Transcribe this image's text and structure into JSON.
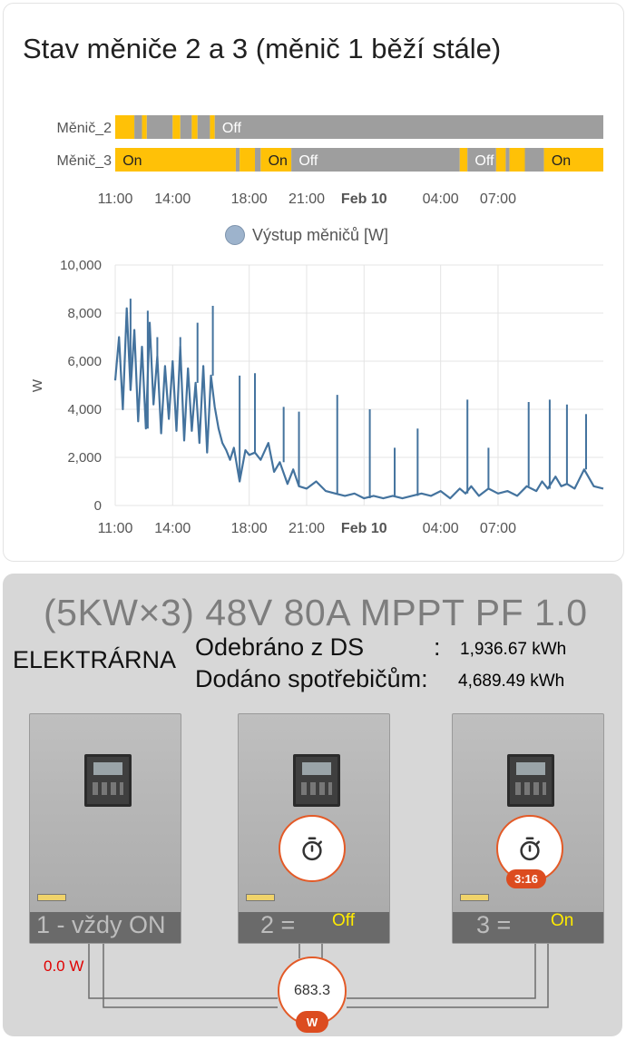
{
  "card_title": "Stav měniče 2 a 3 (měnič 1 běží stále)",
  "timeline": {
    "rows": [
      {
        "name": "Měnič_2",
        "segments": [
          {
            "state": "On",
            "start": 0.0,
            "end": 1.0
          },
          {
            "state": "Off",
            "start": 1.0,
            "end": 1.4
          },
          {
            "state": "On",
            "start": 1.4,
            "end": 1.65
          },
          {
            "state": "Off",
            "start": 1.65,
            "end": 3.0
          },
          {
            "state": "On",
            "start": 3.0,
            "end": 3.4
          },
          {
            "state": "Off",
            "start": 3.4,
            "end": 4.0
          },
          {
            "state": "On",
            "start": 4.0,
            "end": 4.3
          },
          {
            "state": "Off",
            "start": 4.3,
            "end": 4.95
          },
          {
            "state": "On",
            "start": 4.95,
            "end": 5.2
          },
          {
            "state": "Off",
            "start": 5.2,
            "end": 25.5
          }
        ],
        "labels": [
          {
            "text": "Off",
            "at": 5.4
          }
        ]
      },
      {
        "name": "Měnič_3",
        "segments": [
          {
            "state": "On",
            "start": 0.0,
            "end": 6.3
          },
          {
            "state": "Off",
            "start": 6.3,
            "end": 6.5
          },
          {
            "state": "On",
            "start": 6.5,
            "end": 7.3
          },
          {
            "state": "Off",
            "start": 7.3,
            "end": 7.6
          },
          {
            "state": "On",
            "start": 7.6,
            "end": 9.2
          },
          {
            "state": "Off",
            "start": 9.2,
            "end": 18.0
          },
          {
            "state": "On",
            "start": 18.0,
            "end": 18.4
          },
          {
            "state": "Off",
            "start": 18.4,
            "end": 19.9
          },
          {
            "state": "On",
            "start": 19.9,
            "end": 20.4
          },
          {
            "state": "Off",
            "start": 20.4,
            "end": 20.6
          },
          {
            "state": "On",
            "start": 20.6,
            "end": 21.4
          },
          {
            "state": "Off",
            "start": 21.4,
            "end": 22.4
          },
          {
            "state": "On",
            "start": 22.4,
            "end": 25.5
          }
        ],
        "labels": [
          {
            "text": "On",
            "at": 0.2
          },
          {
            "text": "On",
            "at": 7.8
          },
          {
            "text": "Off",
            "at": 9.4
          },
          {
            "text": "Off",
            "at": 18.6
          },
          {
            "text": "On",
            "at": 22.6
          }
        ]
      }
    ],
    "colors": {
      "On": "#ffc107",
      "Off": "#9e9e9e"
    },
    "x_ticks": [
      {
        "label": "11:00",
        "h": 0,
        "bold": false
      },
      {
        "label": "14:00",
        "h": 3,
        "bold": false
      },
      {
        "label": "18:00",
        "h": 7,
        "bold": false
      },
      {
        "label": "21:00",
        "h": 10,
        "bold": false
      },
      {
        "label": "Feb 10",
        "h": 13,
        "bold": true
      },
      {
        "label": "04:00",
        "h": 17,
        "bold": false
      },
      {
        "label": "07:00",
        "h": 20,
        "bold": false
      }
    ]
  },
  "chart_data": {
    "type": "line",
    "legend": "Výstup měničů [W]",
    "ylabel": "W",
    "ylim": [
      0,
      10000
    ],
    "yticks": [
      "0",
      "2,000",
      "4,000",
      "6,000",
      "8,000",
      "10,000"
    ],
    "color": "#44739e",
    "x_hours_after_1100": [
      0,
      0.2,
      0.4,
      0.6,
      0.8,
      1.0,
      1.2,
      1.4,
      1.6,
      1.8,
      2.0,
      2.2,
      2.4,
      2.6,
      2.8,
      3.0,
      3.2,
      3.4,
      3.6,
      3.8,
      4.0,
      4.2,
      4.4,
      4.6,
      4.8,
      5.0,
      5.2,
      5.4,
      5.6,
      5.8,
      6.0,
      6.2,
      6.5,
      6.8,
      7.0,
      7.3,
      7.6,
      8.0,
      8.3,
      8.6,
      9.0,
      9.3,
      9.6,
      10.0,
      10.5,
      11.0,
      11.5,
      12.0,
      12.5,
      13.0,
      13.5,
      14.0,
      14.5,
      15.0,
      15.5,
      16.0,
      16.5,
      17.0,
      17.5,
      18.0,
      18.3,
      18.6,
      19.0,
      19.5,
      20.0,
      20.5,
      21.0,
      21.5,
      22.0,
      22.3,
      22.6,
      23.0,
      23.3,
      23.6,
      24.0,
      24.5,
      25.0,
      25.5
    ],
    "values": [
      5200,
      7000,
      4000,
      8200,
      4800,
      7300,
      3500,
      6600,
      3200,
      7600,
      4200,
      6200,
      3000,
      5800,
      3600,
      6000,
      3100,
      6600,
      2700,
      5700,
      3100,
      5100,
      2600,
      5800,
      2200,
      5400,
      4100,
      3200,
      2600,
      2300,
      1900,
      2400,
      1000,
      2300,
      2100,
      2200,
      1900,
      2600,
      1400,
      1800,
      900,
      1500,
      800,
      700,
      1000,
      600,
      500,
      400,
      500,
      300,
      400,
      300,
      400,
      300,
      400,
      500,
      400,
      600,
      300,
      700,
      500,
      800,
      400,
      700,
      500,
      600,
      400,
      800,
      600,
      1000,
      700,
      1200,
      800,
      900,
      700,
      1500,
      800,
      700
    ],
    "spikes": [
      {
        "h": 0.8,
        "v": 8600
      },
      {
        "h": 1.7,
        "v": 8100
      },
      {
        "h": 2.2,
        "v": 7000
      },
      {
        "h": 3.4,
        "v": 7000
      },
      {
        "h": 4.3,
        "v": 7600
      },
      {
        "h": 5.1,
        "v": 8300
      },
      {
        "h": 6.5,
        "v": 5400
      },
      {
        "h": 7.3,
        "v": 5500
      },
      {
        "h": 8.8,
        "v": 4100
      },
      {
        "h": 9.6,
        "v": 3900
      },
      {
        "h": 11.6,
        "v": 4600
      },
      {
        "h": 13.3,
        "v": 4000
      },
      {
        "h": 14.6,
        "v": 2400
      },
      {
        "h": 15.8,
        "v": 3200
      },
      {
        "h": 18.4,
        "v": 4400
      },
      {
        "h": 19.5,
        "v": 2400
      },
      {
        "h": 21.6,
        "v": 4300
      },
      {
        "h": 22.7,
        "v": 4400
      },
      {
        "h": 23.6,
        "v": 4200
      },
      {
        "h": 24.6,
        "v": 3800
      }
    ],
    "x_ticks": [
      "11:00",
      "14:00",
      "18:00",
      "21:00",
      "Feb 10",
      "04:00",
      "07:00"
    ]
  },
  "plant": {
    "title": "(5KW×3) 48V 80A MPPT PF 1.0",
    "label": "ELEKTRÁRNA",
    "grid_label": "Odebráno z DS",
    "grid_colon": ":",
    "grid_value": "1,936.67 kWh",
    "grid_color": "#ff0000",
    "load_label": "Dodáno spotřebičům:",
    "load_value": "4,689.49 kWh",
    "load_color": "#0000ff",
    "inverters": [
      {
        "label": "1 - vždy ON",
        "status": ""
      },
      {
        "label": "2 =",
        "status": "Off"
      },
      {
        "label": "3 =",
        "status": "On"
      }
    ],
    "timer_badge": "3:16",
    "pv_power": "0.0 W",
    "output_power": "683.3",
    "output_unit": "W"
  }
}
